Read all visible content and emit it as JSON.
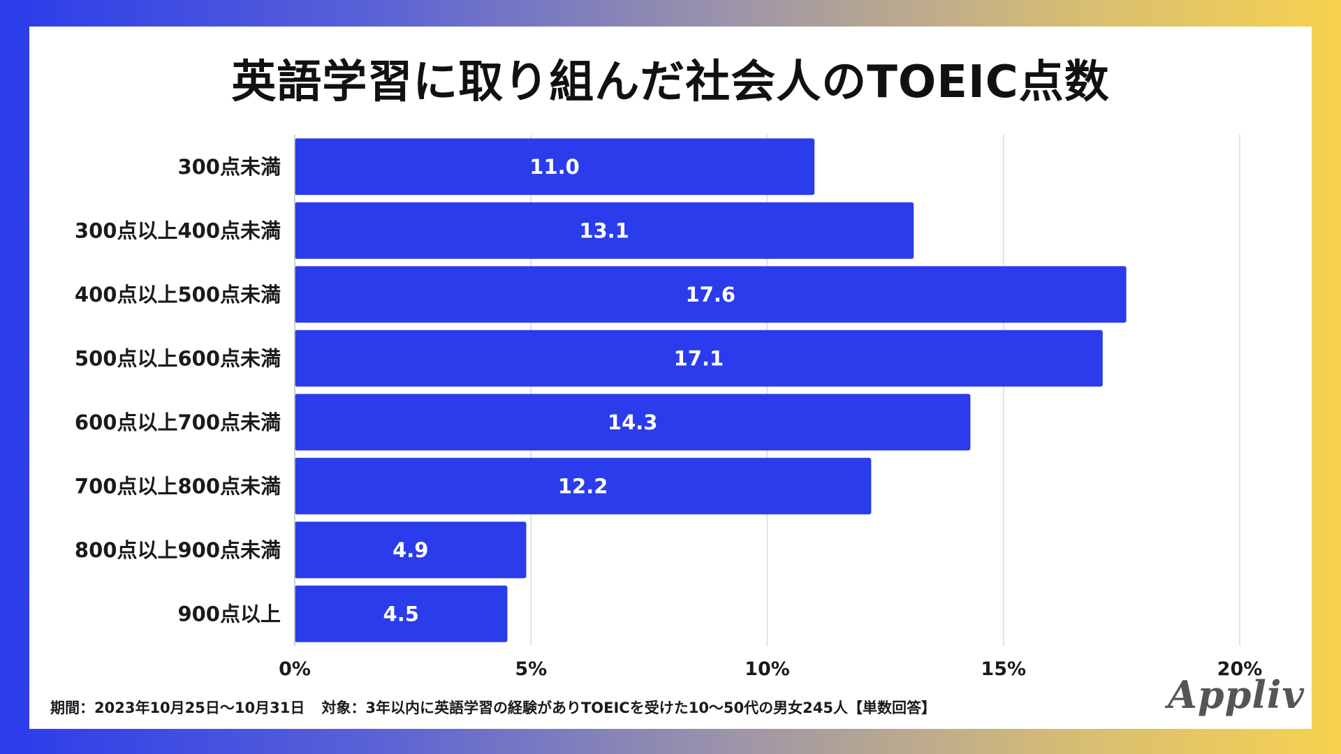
{
  "chart_data": {
    "type": "bar",
    "orientation": "horizontal",
    "title": "英語学習に取り組んだ社会人のTOEIC点数",
    "categories": [
      "300点未満",
      "300点以上400点未満",
      "400点以上500点未満",
      "500点以上600点未満",
      "600点以上700点未満",
      "700点以上800点未満",
      "800点以上900点未満",
      "900点以上"
    ],
    "values": [
      11.0,
      13.1,
      17.6,
      17.1,
      14.3,
      12.2,
      4.9,
      4.5
    ],
    "value_labels": [
      "11.0",
      "13.1",
      "17.6",
      "17.1",
      "14.3",
      "12.2",
      "4.9",
      "4.5"
    ],
    "xlim": [
      0,
      20
    ],
    "x_ticks": [
      0,
      5,
      10,
      15,
      20
    ],
    "x_tick_labels": [
      "0%",
      "5%",
      "10%",
      "15%",
      "20%"
    ],
    "xlabel": "",
    "ylabel": "",
    "grid": true,
    "bar_color": "#2a3ceb"
  },
  "footer": {
    "period": "期間：2023年10月25日〜10月31日",
    "target": "対象：3年以内に英語学習の経験がありTOEICを受けた10〜50代の男女245人【単数回答】"
  },
  "brand": {
    "logo_text": "Appliv"
  }
}
